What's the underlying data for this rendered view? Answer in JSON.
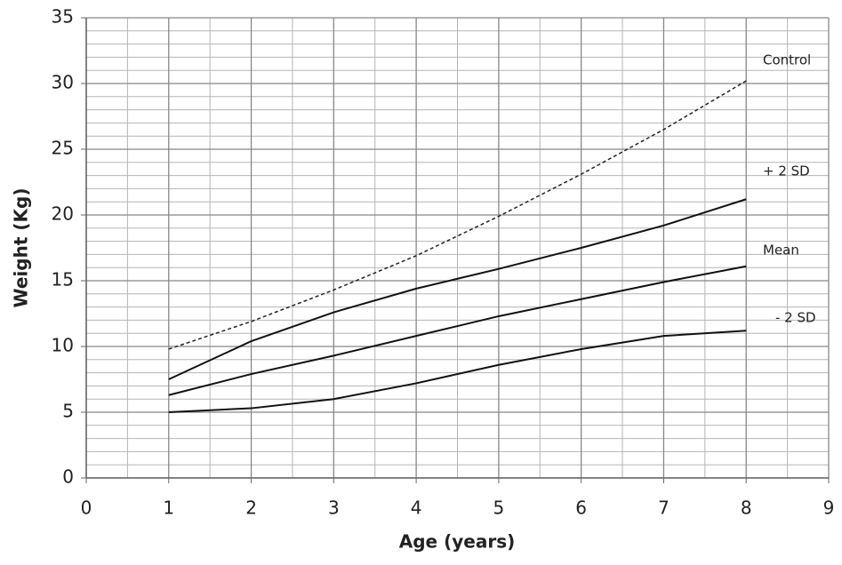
{
  "chart_data": {
    "type": "line",
    "x_label": "Age (years)",
    "y_label": "Weight (Kg)",
    "x": [
      1,
      2,
      3,
      4,
      5,
      6,
      7,
      8
    ],
    "series": [
      {
        "name": "Control",
        "color": "#222222",
        "dashed": true,
        "values": [
          9.8,
          11.9,
          14.3,
          16.9,
          19.9,
          23.1,
          26.5,
          30.2
        ]
      },
      {
        "name": "+ 2 SD",
        "color": "#111111",
        "dashed": false,
        "values": [
          7.5,
          10.4,
          12.6,
          14.4,
          15.9,
          17.5,
          19.2,
          21.2
        ]
      },
      {
        "name": "Mean",
        "color": "#111111",
        "dashed": false,
        "values": [
          6.3,
          7.9,
          9.3,
          10.8,
          12.3,
          13.6,
          14.9,
          16.1
        ]
      },
      {
        "name": "- 2 SD",
        "color": "#111111",
        "dashed": false,
        "values": [
          5.0,
          5.3,
          6.0,
          7.2,
          8.6,
          9.8,
          10.8,
          11.2
        ]
      }
    ],
    "xlim": [
      0,
      9
    ],
    "xticks": [
      0,
      1,
      2,
      3,
      4,
      5,
      6,
      7,
      8,
      9
    ],
    "ylim": [
      0,
      35
    ],
    "yticks": [
      0,
      5,
      10,
      15,
      20,
      25,
      30,
      35
    ],
    "xminorticks": [
      0.5,
      1.5,
      2.5,
      3.5,
      4.5,
      5.5,
      6.5,
      7.5,
      8.5
    ],
    "yminorticks": [
      1,
      2,
      3,
      4,
      6,
      7,
      8,
      9,
      11,
      12,
      13,
      14,
      16,
      17,
      18,
      19,
      21,
      22,
      23,
      24,
      26,
      27,
      28,
      29,
      31,
      32,
      33,
      34
    ],
    "grid": true
  }
}
